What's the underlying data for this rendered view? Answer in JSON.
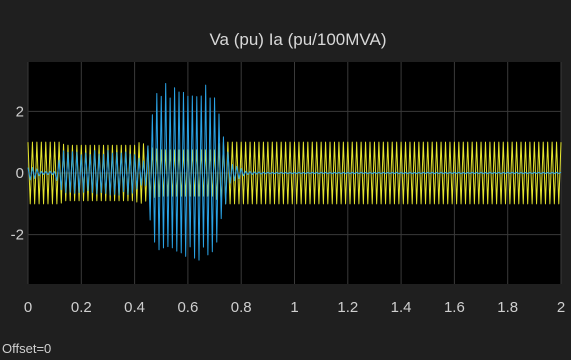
{
  "window": {
    "offset_label": "Offset=0"
  },
  "colors": {
    "background": "#1f1f1f",
    "plot_background": "#000000",
    "grid": "#3a3a3a",
    "series_va": "#e6e62e",
    "series_ia": "#2aa3e6"
  },
  "chart_data": {
    "type": "line",
    "title": "Va (pu)  Ia (pu/100MVA)",
    "xlabel": "",
    "ylabel": "",
    "xlim": [
      0,
      2
    ],
    "ylim": [
      -3.6,
      3.6
    ],
    "xticks": [
      0,
      0.2,
      0.4,
      0.6,
      0.8,
      1,
      1.2,
      1.4,
      1.6,
      1.8,
      2
    ],
    "xtick_labels": [
      "0",
      "0.2",
      "0.4",
      "0.6",
      "0.8",
      "1",
      "1.2",
      "1.4",
      "1.6",
      "1.8",
      "2"
    ],
    "yticks": [
      -2,
      0,
      2
    ],
    "ytick_labels": [
      "-2",
      "0",
      "2"
    ],
    "grid": true,
    "legend": false,
    "series": [
      {
        "id": "va",
        "frequency_hz": 60,
        "envelope": {
          "t": [
            0,
            0.02,
            0.12,
            0.14,
            0.4,
            0.42,
            0.47,
            0.5,
            0.7,
            0.72,
            2.0
          ],
          "amp": [
            1.0,
            1.0,
            1.0,
            0.9,
            0.9,
            1.0,
            0.8,
            0.75,
            0.75,
            1.0,
            1.0
          ]
        }
      },
      {
        "id": "ia",
        "frequency_hz": 60,
        "envelope": {
          "t": [
            0,
            0.02,
            0.05,
            0.1,
            0.13,
            0.4,
            0.44,
            0.46,
            0.48,
            0.7,
            0.73,
            0.76,
            0.82,
            0.9,
            2.0
          ],
          "amp": [
            0.2,
            0.2,
            0.05,
            0.05,
            0.65,
            0.65,
            0.3,
            1.5,
            2.7,
            2.7,
            1.3,
            0.3,
            0.05,
            0.02,
            0.02
          ]
        }
      }
    ]
  }
}
